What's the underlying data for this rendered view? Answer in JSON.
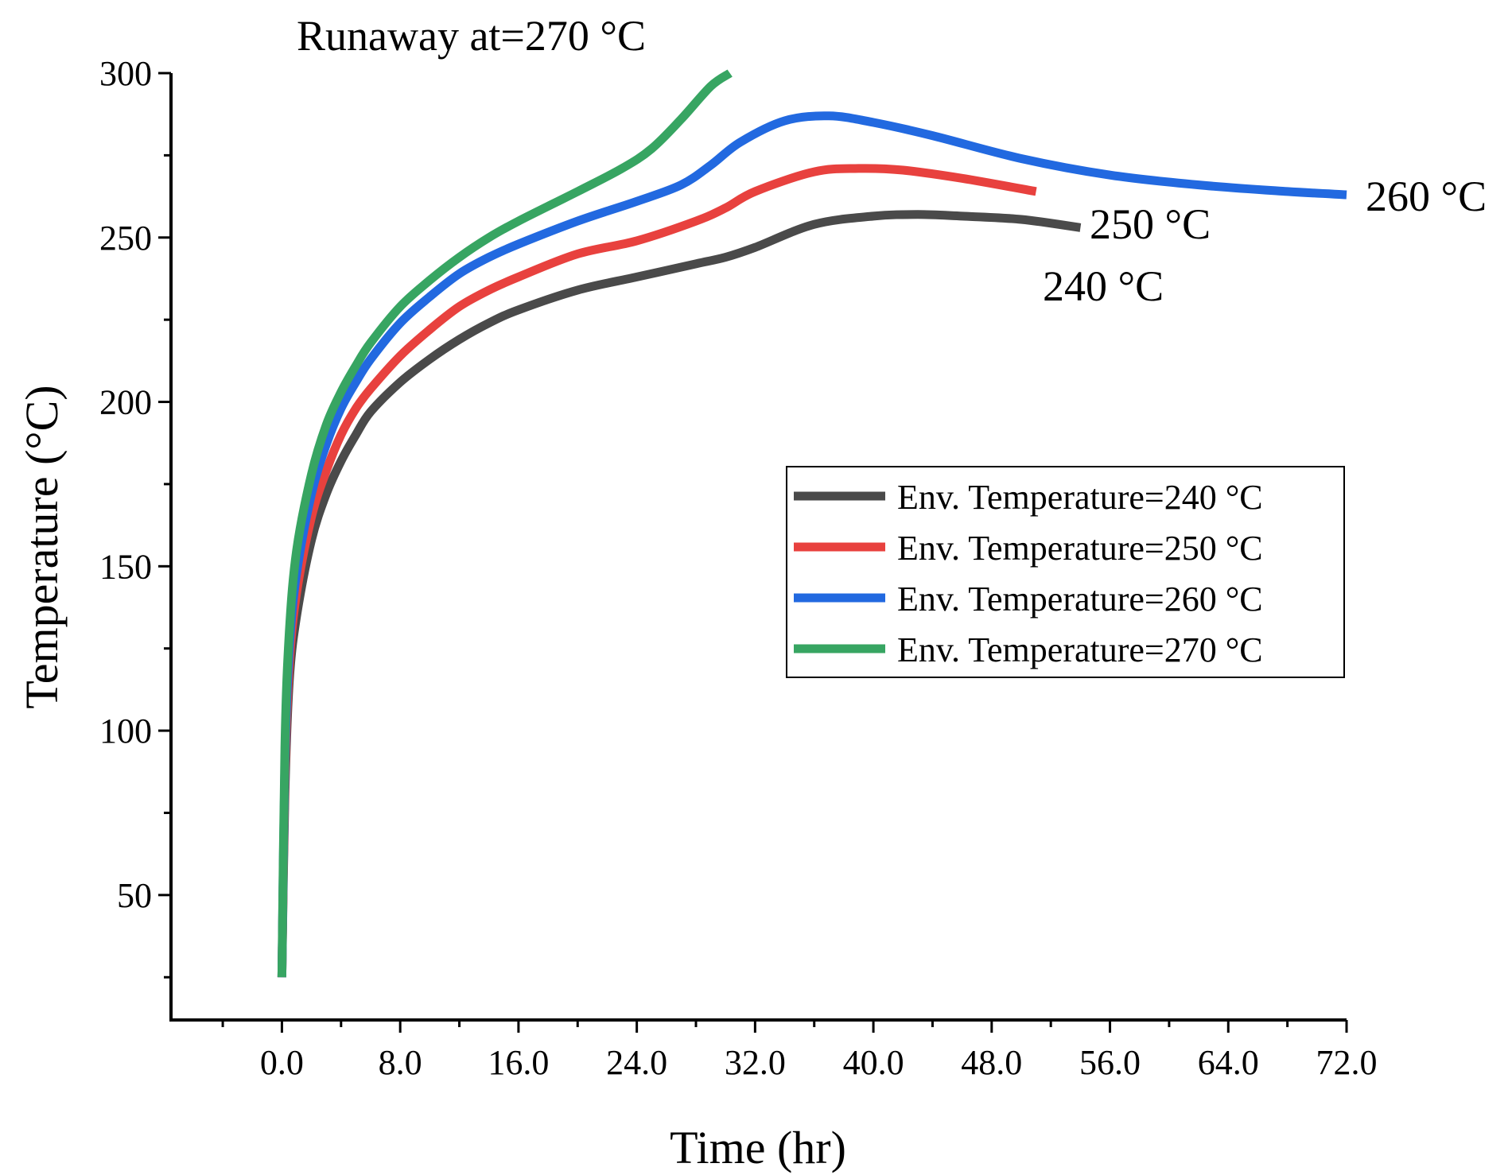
{
  "chart_data": {
    "type": "line",
    "title": "",
    "xlabel": "Time (hr)",
    "ylabel": "Temperature (°C)",
    "xlim": [
      -7.5,
      72
    ],
    "ylim": [
      12,
      300
    ],
    "x_ticks": [
      0,
      8,
      16,
      24,
      32,
      40,
      48,
      56,
      64,
      72
    ],
    "x_tick_labels": [
      "0.0",
      "8.0",
      "16.0",
      "24.0",
      "32.0",
      "40.0",
      "48.0",
      "56.0",
      "64.0",
      "72.0"
    ],
    "y_ticks": [
      50,
      100,
      150,
      200,
      250,
      300
    ],
    "y_tick_labels": [
      "50",
      "100",
      "150",
      "200",
      "250",
      "300"
    ],
    "grid": false,
    "legend_position": "center-right",
    "series": [
      {
        "name": "Env. Temperature=240 °C",
        "color": "#4a4a4a",
        "x": [
          0,
          0.2,
          0.5,
          1,
          2,
          3,
          4,
          5,
          6,
          8,
          10,
          12,
          14,
          16,
          20,
          24,
          28,
          30,
          32,
          36,
          40,
          43,
          46,
          50,
          54
        ],
        "y": [
          25,
          80,
          115,
          135,
          158,
          172,
          182,
          190,
          197,
          206,
          213,
          219,
          224,
          228,
          234,
          238,
          242,
          244,
          247,
          254,
          256.5,
          257,
          256.5,
          255.5,
          253
        ]
      },
      {
        "name": "Env. Temperature=250 °C",
        "color": "#e8413e",
        "x": [
          0,
          0.2,
          0.5,
          1,
          2,
          3,
          4,
          5,
          6,
          8,
          10,
          12,
          14,
          16,
          20,
          24,
          28,
          30,
          32,
          36,
          39,
          42,
          46,
          51
        ],
        "y": [
          25,
          85,
          120,
          142,
          165,
          179,
          190,
          198,
          204,
          214,
          222,
          229,
          234,
          238,
          245,
          249,
          255,
          259,
          264,
          270,
          271,
          270.5,
          268,
          264
        ]
      },
      {
        "name": "Env. Temperature=260 °C",
        "color": "#2269e0",
        "x": [
          0,
          0.2,
          0.5,
          1,
          2,
          3,
          4,
          5,
          6,
          8,
          10,
          12,
          14,
          16,
          20,
          24,
          27,
          29,
          31,
          34,
          37,
          40,
          44,
          50,
          56,
          62,
          68,
          72
        ],
        "y": [
          25,
          90,
          125,
          148,
          172,
          187,
          198,
          206,
          213,
          224,
          232,
          239,
          244,
          248,
          255,
          261,
          266,
          272,
          279,
          285.5,
          287,
          285,
          281,
          274,
          269,
          266,
          264,
          263
        ]
      },
      {
        "name": "Env. Temperature=270 °C",
        "color": "#37a562",
        "x": [
          0,
          0.2,
          0.5,
          1,
          2,
          3,
          4,
          5,
          6,
          8,
          10,
          12,
          14,
          16,
          20,
          23,
          25,
          27,
          29,
          30.3
        ],
        "y": [
          25,
          95,
          130,
          155,
          178,
          193,
          203,
          211,
          218,
          229,
          237,
          244,
          250,
          255,
          264,
          271,
          277,
          286,
          296,
          300
        ]
      }
    ],
    "annotations": [
      {
        "text": "Runaway at=270 °C"
      },
      {
        "text": "250 °C"
      },
      {
        "text": "240 °C"
      },
      {
        "text": "260 °C"
      }
    ]
  }
}
